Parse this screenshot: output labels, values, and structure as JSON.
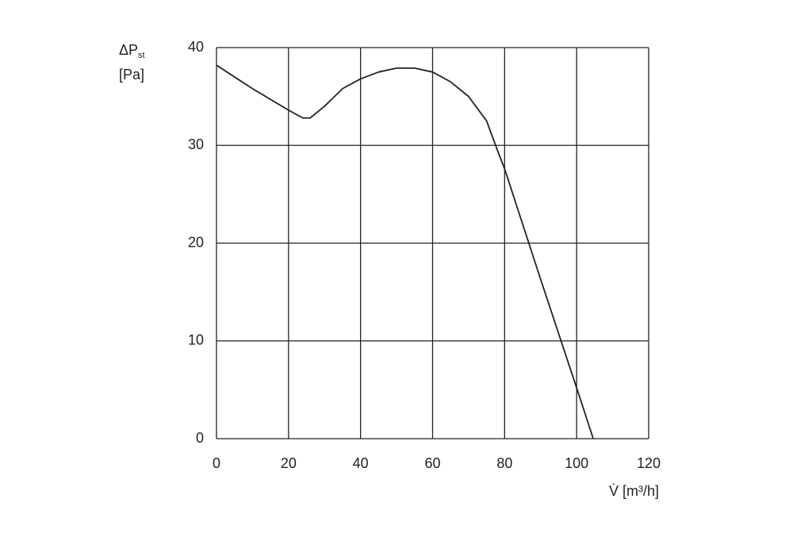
{
  "chart_data": {
    "type": "line",
    "y_label": "ΔP",
    "y_label_sub": "st",
    "y_unit": "[Pa]",
    "x_label": "V̇ [m³/h]",
    "x": [
      0,
      10,
      20,
      24,
      26,
      30,
      35,
      40,
      45,
      50,
      55,
      60,
      65,
      70,
      75,
      78,
      80,
      90,
      100,
      104.6
    ],
    "series": [
      {
        "color": "#222222",
        "values": [
          38.2,
          35.8,
          33.6,
          32.8,
          32.8,
          34,
          35.8,
          36.8,
          37.5,
          37.9,
          37.9,
          37.5,
          36.5,
          35,
          32.5,
          29.5,
          27.6,
          16.3,
          5.2,
          0
        ]
      }
    ],
    "xlim": [
      0,
      120
    ],
    "xticks": [
      0,
      20,
      40,
      60,
      80,
      100,
      120
    ],
    "ylim": [
      0,
      40
    ],
    "yticks": [
      0,
      10,
      20,
      30,
      40
    ],
    "grid": true
  }
}
